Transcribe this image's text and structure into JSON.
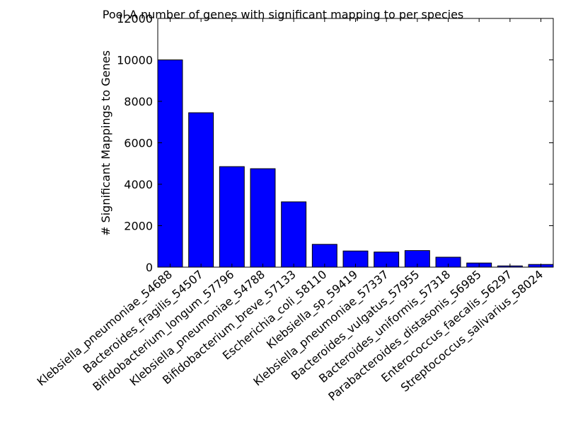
{
  "chart_data": {
    "type": "bar",
    "title": "Pool A number of genes with significant mapping to per species",
    "xlabel": "",
    "ylabel": "# Significant Mappings to Genes",
    "ylim": [
      0,
      12000
    ],
    "yticks": [
      0,
      2000,
      4000,
      6000,
      8000,
      10000,
      12000
    ],
    "grid": false,
    "bar_color": "#0000ff",
    "categories": [
      "Klebsiella_pneumoniae_54688",
      "Bacteroides_fragilis_54507",
      "Bifidobacterium_longum_57796",
      "Klebsiella_pneumoniae_54788",
      "Bifidobacterium_breve_57133",
      "Escherichia_coli_58110",
      "Klebsiella_sp_59419",
      "Klebsiella_pneumoniae_57337",
      "Bacteroides_vulgatus_57955",
      "Bacteroides_uniformis_57318",
      "Parabacteroides_distasonis_56985",
      "Enterococcus_faecalis_56297",
      "Streptococcus_salivarius_58024"
    ],
    "values": [
      10000,
      7450,
      4850,
      4750,
      3150,
      1100,
      780,
      730,
      800,
      480,
      200,
      60,
      130
    ]
  }
}
